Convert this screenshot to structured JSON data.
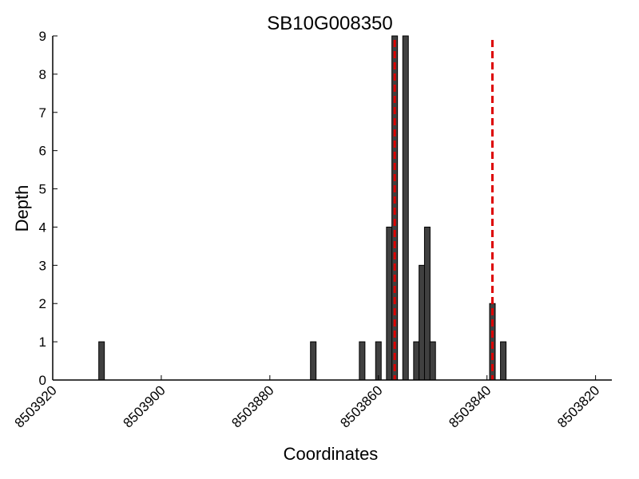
{
  "chart_data": {
    "type": "bar",
    "title": "SB10G008350",
    "xlabel": "Coordinates",
    "ylabel": "Depth",
    "xlim": [
      8503920,
      8503817
    ],
    "ylim": [
      0,
      9
    ],
    "x_ticks": [
      8503920,
      8503900,
      8503880,
      8503860,
      8503840,
      8503820
    ],
    "y_ticks": [
      0,
      1,
      2,
      3,
      4,
      5,
      6,
      7,
      8,
      9
    ],
    "bar_color": "#404040",
    "edge_color": "#000000",
    "series": [
      {
        "x": [
          8503911,
          8503872,
          8503863,
          8503860,
          8503858,
          8503857,
          8503855,
          8503853,
          8503852,
          8503851,
          8503850,
          8503839,
          8503837
        ],
        "values": [
          1,
          1,
          1,
          1,
          4,
          9,
          9,
          1,
          3,
          4,
          1,
          2,
          1
        ]
      }
    ],
    "reference_lines": {
      "x": [
        8503857,
        8503839
      ],
      "color": "#dd0000",
      "style": "dashed"
    },
    "grid": false,
    "legend": "none"
  }
}
